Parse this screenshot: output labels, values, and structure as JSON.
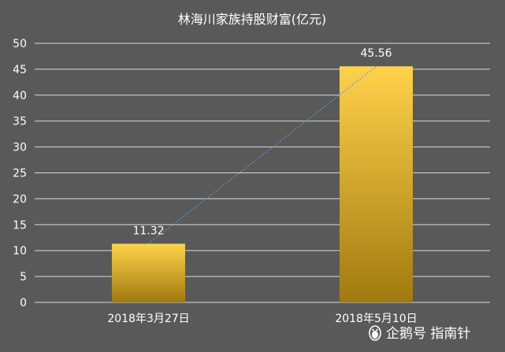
{
  "chart_data": {
    "type": "bar",
    "title": "林海川家族持股财富(亿元)",
    "categories": [
      "2018年3月27日",
      "2018年5月10日"
    ],
    "values": [
      11.32,
      45.56
    ],
    "data_labels": [
      "11.32",
      "45.56"
    ],
    "ylim": [
      0,
      50
    ],
    "y_ticks": [
      0,
      5,
      10,
      15,
      20,
      25,
      30,
      35,
      40,
      45,
      50
    ],
    "grid": true,
    "legend": "none",
    "trendline": {
      "style": "dotted",
      "color": "#5b9bd5"
    },
    "colors": {
      "background": "#595959",
      "bar_top": "#ffd24a",
      "bar_bottom": "#a07a10",
      "grid": "#d9d9d9",
      "text": "#ffffff"
    }
  },
  "watermark": {
    "icon": "penguin-icon",
    "text": "企鹅号 指南针"
  }
}
